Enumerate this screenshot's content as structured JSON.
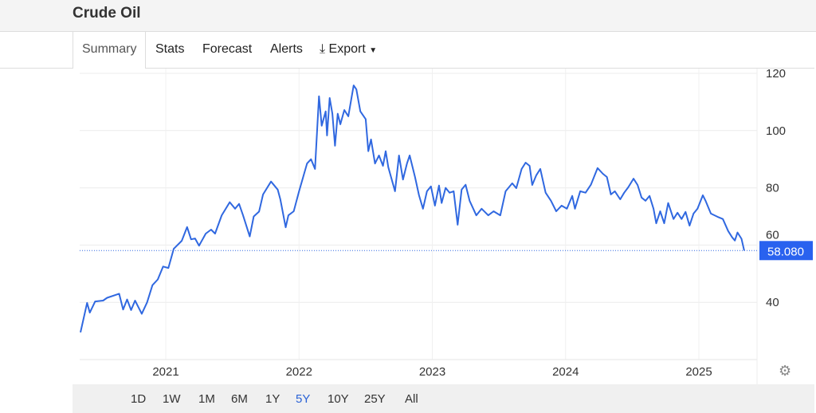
{
  "header": {
    "title": "Crude Oil"
  },
  "tabs": [
    {
      "label": "Summary",
      "active": true
    },
    {
      "label": "Stats"
    },
    {
      "label": "Forecast"
    },
    {
      "label": "Alerts"
    },
    {
      "label": "Export",
      "icon": "download-icon",
      "dropdown": true
    }
  ],
  "ranges": [
    {
      "label": "1D"
    },
    {
      "label": "1W"
    },
    {
      "label": "1M"
    },
    {
      "label": "6M"
    },
    {
      "label": "1Y"
    },
    {
      "label": "5Y",
      "active": true
    },
    {
      "label": "10Y"
    },
    {
      "label": "25Y"
    },
    {
      "label": "All"
    }
  ],
  "colors": {
    "line": "#3068e0",
    "price_label_bg": "#2962ef",
    "active_range": "#2a62d6"
  },
  "chart_data": {
    "type": "line",
    "title": "Crude Oil",
    "ylim": [
      20,
      120
    ],
    "yticks": [
      40,
      60,
      80,
      100,
      120
    ],
    "xticks": [
      2021,
      2022,
      2023,
      2024,
      2025
    ],
    "xlim": [
      2020.36,
      2025.34
    ],
    "current_price": "58.080",
    "current_value": 58.08,
    "grid": true,
    "y_axis_position": "right",
    "series": [
      {
        "name": "Crude Oil",
        "x": [
          2020.36,
          2020.41,
          2020.43,
          2020.47,
          2020.53,
          2020.56,
          2020.65,
          2020.68,
          2020.71,
          2020.74,
          2020.77,
          2020.82,
          2020.86,
          2020.9,
          2020.94,
          2020.98,
          2021.02,
          2021.06,
          2021.12,
          2021.16,
          2021.19,
          2021.22,
          2021.25,
          2021.3,
          2021.34,
          2021.37,
          2021.42,
          2021.48,
          2021.52,
          2021.55,
          2021.58,
          2021.63,
          2021.66,
          2021.7,
          2021.73,
          2021.79,
          2021.84,
          2021.86,
          2021.9,
          2021.92,
          2021.96,
          2022.0,
          2022.06,
          2022.09,
          2022.12,
          2022.15,
          2022.17,
          2022.2,
          2022.21,
          2022.23,
          2022.25,
          2022.27,
          2022.29,
          2022.31,
          2022.34,
          2022.37,
          2022.41,
          2022.43,
          2022.46,
          2022.5,
          2022.52,
          2022.54,
          2022.57,
          2022.6,
          2022.63,
          2022.65,
          2022.67,
          2022.72,
          2022.75,
          2022.78,
          2022.81,
          2022.83,
          2022.87,
          2022.9,
          2022.93,
          2022.96,
          2022.99,
          2023.02,
          2023.05,
          2023.07,
          2023.1,
          2023.13,
          2023.16,
          2023.19,
          2023.22,
          2023.25,
          2023.28,
          2023.33,
          2023.37,
          2023.42,
          2023.46,
          2023.51,
          2023.55,
          2023.6,
          2023.63,
          2023.67,
          2023.7,
          2023.73,
          2023.75,
          2023.78,
          2023.81,
          2023.85,
          2023.89,
          2023.93,
          2023.97,
          2024.01,
          2024.05,
          2024.07,
          2024.11,
          2024.15,
          2024.19,
          2024.24,
          2024.28,
          2024.31,
          2024.34,
          2024.37,
          2024.41,
          2024.44,
          2024.47,
          2024.51,
          2024.54,
          2024.57,
          2024.6,
          2024.63,
          2024.66,
          2024.68,
          2024.71,
          2024.74,
          2024.77,
          2024.81,
          2024.84,
          2024.87,
          2024.9,
          2024.93,
          2024.96,
          2024.99,
          2025.03,
          2025.05,
          2025.09,
          2025.14,
          2025.18,
          2025.22,
          2025.25,
          2025.27,
          2025.29,
          2025.32,
          2025.34
        ],
        "y": [
          29.5,
          39.8,
          36.4,
          40.3,
          40.6,
          41.6,
          43,
          37.5,
          41,
          37.3,
          40.6,
          36,
          40,
          46,
          48,
          52.5,
          52,
          58.7,
          61.5,
          66.3,
          62,
          62.3,
          59.8,
          64,
          65.4,
          64,
          70.4,
          75,
          72.7,
          74.4,
          70.4,
          63,
          70,
          71.7,
          77.7,
          82.2,
          79.4,
          76,
          66.2,
          70.4,
          71.8,
          78.8,
          88.5,
          90,
          86.6,
          112,
          101.7,
          106.7,
          98.3,
          111.4,
          105.9,
          94.7,
          105.9,
          102.2,
          107.2,
          105,
          115.8,
          114.4,
          106.7,
          104,
          92.8,
          96.9,
          88.5,
          91.3,
          87.7,
          92.8,
          87.2,
          78.8,
          91.3,
          82.9,
          88.5,
          91.3,
          83.8,
          77.4,
          72.7,
          78.8,
          80.5,
          73.8,
          80.8,
          74.7,
          80,
          78.3,
          78.8,
          67.1,
          79.4,
          81.1,
          75.5,
          70.4,
          72.7,
          70.4,
          71.8,
          70.4,
          78.8,
          81.6,
          79.9,
          86.6,
          88.8,
          87.7,
          81,
          84.4,
          86.6,
          78.3,
          75.5,
          71.8,
          73.8,
          72.7,
          77.2,
          72.7,
          78.8,
          78.3,
          81.1,
          86.9,
          84.9,
          83.8,
          77.7,
          78.8,
          76,
          78.3,
          80.2,
          83.2,
          81,
          76.6,
          75.5,
          77.2,
          72.7,
          67.6,
          71.8,
          67.6,
          74.7,
          69.1,
          71.3,
          69.1,
          71.6,
          66.8,
          71,
          72.7,
          77.4,
          75.5,
          71,
          69.9,
          69.1,
          64.9,
          62.7,
          61.6,
          64.4,
          62.2,
          58.08
        ]
      }
    ]
  }
}
